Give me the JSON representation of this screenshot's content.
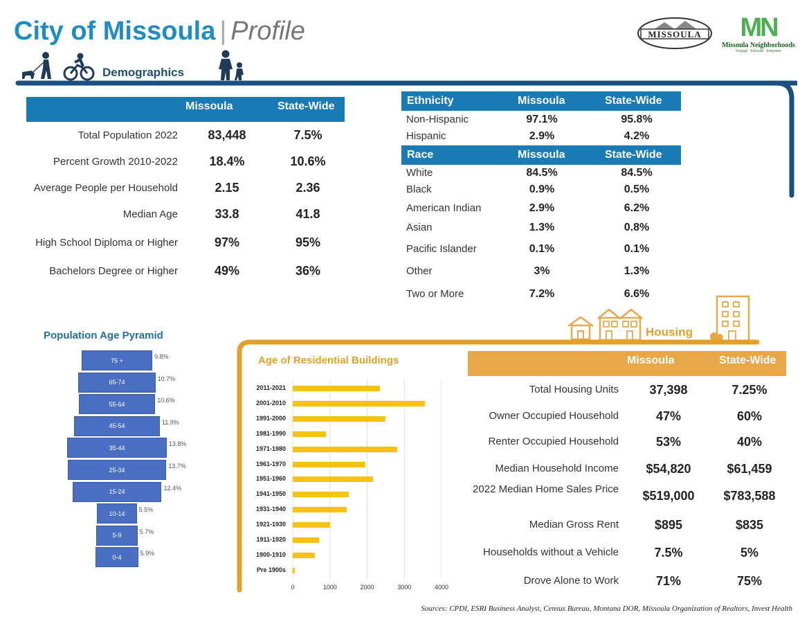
{
  "header": {
    "title": "City of Missoula",
    "separator": "|",
    "subtitle": "Profile",
    "logo_missoula": "MISSOULA",
    "logo_mn_letters": "MN",
    "logo_mn_name": "Missoula Neighborhoods",
    "logo_mn_tagline": "Engage · Educate · Empower"
  },
  "demographics": {
    "title": "Demographics",
    "col_missoula": "Missoula",
    "col_state": "State-Wide",
    "rows": [
      {
        "label": "Total Population 2022",
        "missoula": "83,448",
        "state": "7.5%"
      },
      {
        "label": "Percent Growth 2010-2022",
        "missoula": "18.4%",
        "state": "10.6%"
      },
      {
        "label": "Average People per Household",
        "missoula": "2.15",
        "state": "2.36"
      },
      {
        "label": "Median Age",
        "missoula": "33.8",
        "state": "41.8"
      },
      {
        "label": "High School Diploma or Higher",
        "missoula": "97%",
        "state": "95%"
      },
      {
        "label": "Bachelors Degree or Higher",
        "missoula": "49%",
        "state": "36%"
      }
    ]
  },
  "ethnicity": {
    "header": "Ethnicity",
    "col_missoula": "Missoula",
    "col_state": "State-Wide",
    "rows": [
      {
        "label": "Non-Hispanic",
        "missoula": "97.1%",
        "state": "95.8%"
      },
      {
        "label": "Hispanic",
        "missoula": "2.9%",
        "state": "4.2%"
      }
    ]
  },
  "race": {
    "header": "Race",
    "col_missoula": "Missoula",
    "col_state": "State-Wide",
    "rows": [
      {
        "label": "White",
        "missoula": "84.5%",
        "state": "84.5%"
      },
      {
        "label": "Black",
        "missoula": "0.9%",
        "state": "0.5%"
      },
      {
        "label": "American Indian",
        "missoula": "2.9%",
        "state": "6.2%"
      },
      {
        "label": "Asian",
        "missoula": "1.3%",
        "state": "0.8%"
      },
      {
        "label": "Pacific Islander",
        "missoula": "0.1%",
        "state": "0.1%"
      },
      {
        "label": "Other",
        "missoula": "3%",
        "state": "1.3%"
      },
      {
        "label": "Two or More",
        "missoula": "7.2%",
        "state": "6.6%"
      }
    ]
  },
  "housing": {
    "title": "Housing",
    "col_missoula": "Missoula",
    "col_state": "State-Wide",
    "rows": [
      {
        "label": "Total Housing Units",
        "missoula": "37,398",
        "state": "7.25%"
      },
      {
        "label": "Owner Occupied Household",
        "missoula": "47%",
        "state": "60%"
      },
      {
        "label": "Renter Occupied Household",
        "missoula": "53%",
        "state": "40%"
      },
      {
        "label": "Median Household Income",
        "missoula": "$54,820",
        "state": "$61,459"
      },
      {
        "label": "2022 Median Home Sales Price",
        "missoula": "$519,000",
        "state": "$783,588"
      },
      {
        "label": "Median Gross Rent",
        "missoula": "$895",
        "state": "$835"
      },
      {
        "label": "Households without a Vehicle",
        "missoula": "7.5%",
        "state": "5%"
      },
      {
        "label": "Drove Alone to Work",
        "missoula": "71%",
        "state": "75%"
      }
    ]
  },
  "colors": {
    "blue": "#1a7bb4",
    "orange": "#e8a84a",
    "pyramid": "#4a6fc2",
    "buildings": "#f6c314"
  },
  "source_text": "Sources: CPDI, ESRI Business Analyst, Census Bureau, Montana DOR, Missoula Organization of Realtors, Invest Health",
  "chart_data": [
    {
      "type": "bar",
      "orientation": "horizontal-centered",
      "title": "Population Age Pyramid",
      "categories": [
        "75 +",
        "65-74",
        "55-64",
        "45-54",
        "35-44",
        "25-34",
        "15-24",
        "10-14",
        "5-9",
        "0-4"
      ],
      "values": [
        9.8,
        10.7,
        10.6,
        11.9,
        13.8,
        13.7,
        12.4,
        5.5,
        5.7,
        5.9
      ],
      "value_labels": [
        "9.8%",
        "10.7%",
        "10.6%",
        "11.9%",
        "13.8%",
        "13.7%",
        "12.4%",
        "5.5%",
        "5.7%",
        "5.9%"
      ]
    },
    {
      "type": "bar",
      "orientation": "horizontal",
      "title": "Age of Residential Buildings",
      "categories": [
        "2011-2021",
        "2001-2010",
        "1991-2000",
        "1981-1990",
        "1971-1980",
        "1961-1970",
        "1951-1960",
        "1941-1950",
        "1931-1940",
        "1921-1930",
        "1911-1920",
        "1900-1910",
        "Pre 1900s"
      ],
      "values": [
        2350,
        3550,
        2500,
        900,
        2800,
        1950,
        2150,
        1500,
        1450,
        1000,
        700,
        600,
        60
      ],
      "xlim": [
        0,
        4000
      ],
      "xticks": [
        "0",
        "1000",
        "2000",
        "3000",
        "4000"
      ],
      "grid": true
    }
  ]
}
